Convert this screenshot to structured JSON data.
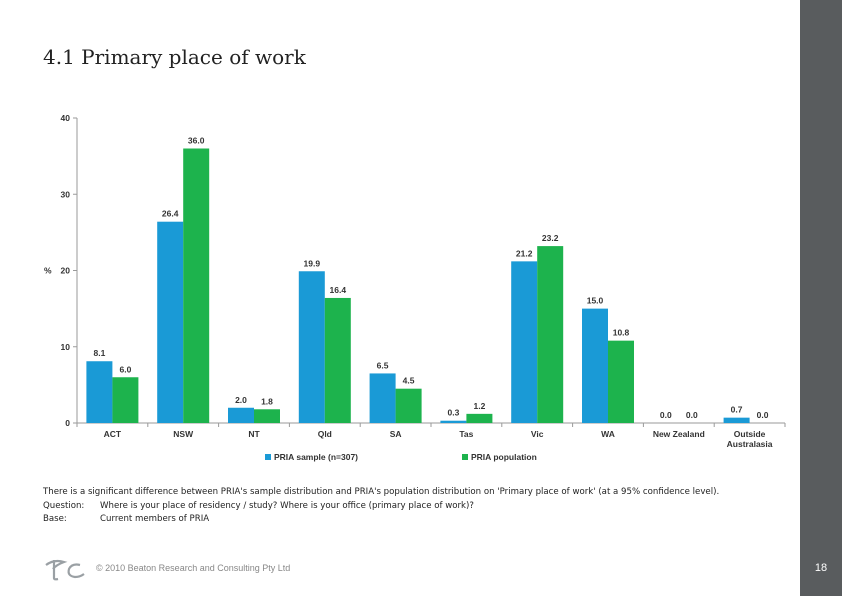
{
  "page": {
    "title": "4.1 Primary place of work",
    "page_number": "18",
    "copyright": "© 2010 Beaton Research and Consulting Pty Ltd"
  },
  "notes": {
    "significance": "There is a significant difference between PRIA's sample distribution and PRIA's population distribution on 'Primary place of work' (at a 95% confidence level).",
    "question_key": "Question:",
    "question_text": "Where is your place of residency / study? Where is your office (primary place of work)?",
    "base_key": "Base:",
    "base_text": "Current members of PRIA"
  },
  "colors": {
    "sample": "#1a9ad6",
    "population": "#1db34d",
    "sidebar": "#595c5e"
  },
  "chart_data": {
    "type": "bar",
    "title": "",
    "xlabel": "",
    "ylabel": "%",
    "ylim": [
      0,
      40
    ],
    "yticks": [
      0,
      10,
      20,
      30,
      40
    ],
    "legend_position": "bottom-center",
    "categories": [
      "ACT",
      "NSW",
      "NT",
      "Qld",
      "SA",
      "Tas",
      "Vic",
      "WA",
      "New Zealand",
      "Outside Australasia"
    ],
    "series": [
      {
        "name": "PRIA sample (n=307)",
        "values": [
          8.1,
          26.4,
          2.0,
          19.9,
          6.5,
          0.3,
          21.2,
          15.0,
          0.0,
          0.7
        ],
        "labels": [
          "8.1",
          "26.4",
          "2.0",
          "19.9",
          "6.5",
          "0.3",
          "21.2",
          "15.0",
          "0.0",
          "0.7"
        ]
      },
      {
        "name": "PRIA population",
        "values": [
          6.0,
          36.0,
          1.8,
          16.4,
          4.5,
          1.2,
          23.2,
          10.8,
          0.0,
          0.0
        ],
        "labels": [
          "6.0",
          "36.0",
          "1.8",
          "16.4",
          "4.5",
          "1.2",
          "23.2",
          "10.8",
          "0.0",
          "0.0"
        ]
      }
    ]
  }
}
